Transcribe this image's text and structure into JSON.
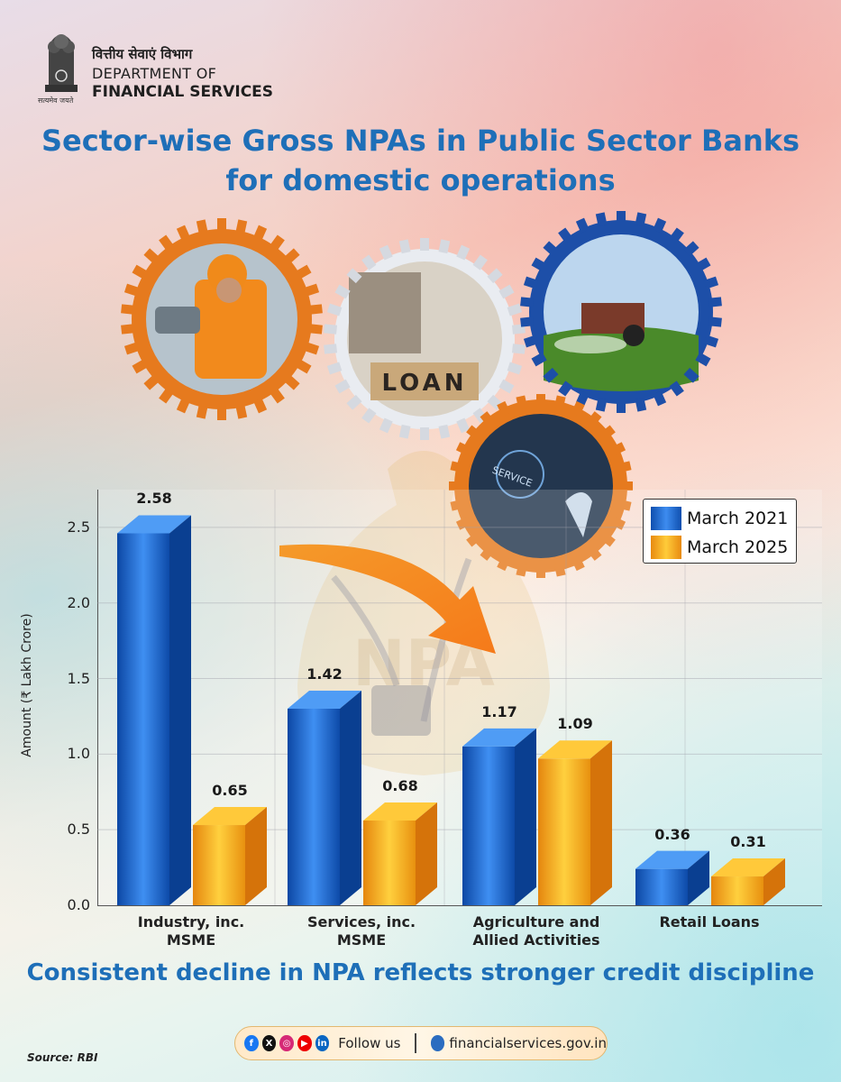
{
  "header": {
    "dept_hindi": "वित्तीय सेवाएं विभाग",
    "dept_line1": "DEPARTMENT OF",
    "dept_line2": "FINANCIAL SERVICES",
    "emblem_motto": "सत्यमेव जयते"
  },
  "title": {
    "line1": "Sector-wise Gross NPAs in Public Sector Banks",
    "line2": "for domestic operations"
  },
  "images": {
    "gear1": "industrial-worker-photo",
    "gear2": "loan-blocks-photo",
    "gear3": "tractor-farm-photo",
    "gear4": "service-touch-photo",
    "gear2_text": "LOAN",
    "gear4_text": "SERVICE",
    "background_bag_text": "NPA"
  },
  "chart_data": {
    "type": "bar",
    "title": "",
    "xlabel": "",
    "ylabel": "Amount (₹ Lakh Crore)",
    "ylim": [
      0,
      2.75
    ],
    "yticks": [
      "0.0",
      "0.5",
      "1.0",
      "1.5",
      "2.0",
      "2.5"
    ],
    "categories": [
      "Industry, inc.\nMSME",
      "Services, inc.\nMSME",
      "Agriculture and\nAllied Activities",
      "Retail Loans"
    ],
    "series": [
      {
        "name": "March 2021",
        "values": [
          2.58,
          1.42,
          1.17,
          0.36
        ],
        "labels": [
          "2.58",
          "1.42",
          "1.17",
          "0.36"
        ],
        "color": "#1b6fd6"
      },
      {
        "name": "March 2025",
        "values": [
          0.65,
          0.68,
          1.09,
          0.31
        ],
        "labels": [
          "0.65",
          "0.68",
          "1.09",
          "0.31"
        ],
        "color": "#f5a81a"
      }
    ],
    "grid": true,
    "legend_position": "top-right"
  },
  "tagline": "Consistent decline in NPA reflects stronger credit discipline",
  "footer": {
    "follow": "Follow us",
    "website": "financialservices.gov.in",
    "social_icons": [
      "facebook-icon",
      "x-icon",
      "instagram-icon",
      "youtube-icon",
      "linkedin-icon"
    ],
    "social_glyphs": [
      "f",
      "X",
      "◎",
      "▶",
      "in"
    ]
  },
  "source": "Source: RBI",
  "colors": {
    "title_blue": "#1e6fb8",
    "bar_blue": "#1b6fd6",
    "bar_orange": "#f5a81a",
    "gear_orange": "#e67a1e",
    "gear_blue": "#1d4fa8"
  }
}
